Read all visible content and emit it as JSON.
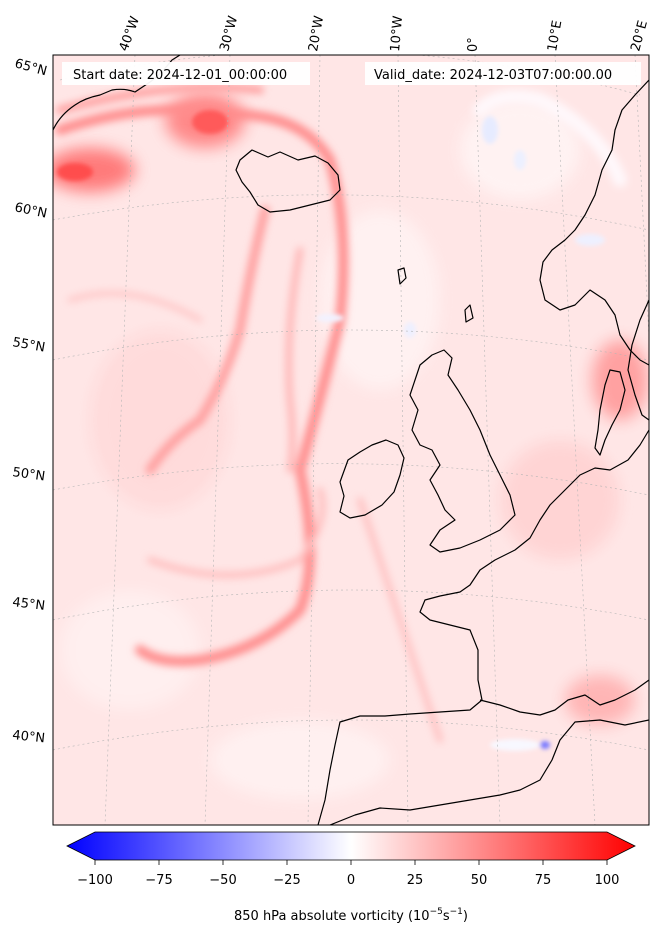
{
  "header": {
    "start_date": "Start date: 2024-12-01_00:00:00",
    "valid_date": "Valid_date: 2024-12-03T07:00:00.00"
  },
  "axes": {
    "longitude_labels": [
      "40°W",
      "30°W",
      "20°W",
      "10°W",
      "0°",
      "10°E",
      "20°E"
    ],
    "latitude_labels": [
      "65°N",
      "60°N",
      "55°N",
      "50°N",
      "45°N",
      "40°N"
    ]
  },
  "colorbar": {
    "ticks": [
      "−100",
      "−75",
      "−50",
      "−25",
      "0",
      "25",
      "50",
      "75",
      "100"
    ],
    "label": "850 hPa absolute vorticity",
    "label_units": "(10",
    "label_exp1": "−5",
    "label_mid": "s",
    "label_exp2": "−1",
    "label_close": ")",
    "range": [
      -100,
      100
    ],
    "low_color": "#0000ff",
    "mid_color": "#ffffff",
    "high_color": "#ff0000"
  },
  "map": {
    "background_color": "#ffe6e6",
    "coastline_color": "#000000",
    "graticule_color": "#b0b0b0",
    "variable": "850 hPa absolute vorticity"
  }
}
